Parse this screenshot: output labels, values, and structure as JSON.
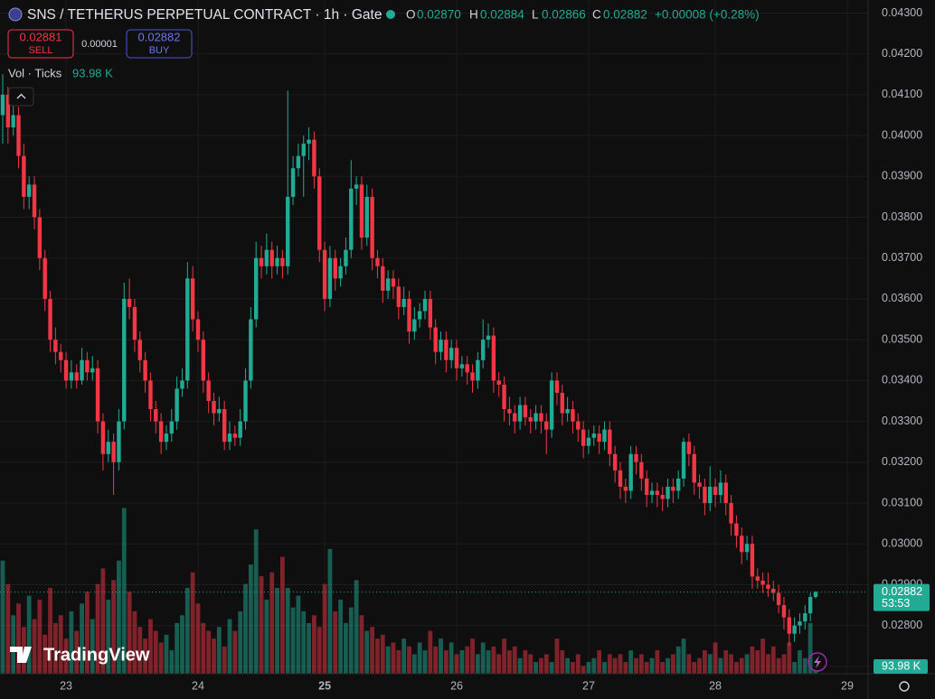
{
  "header": {
    "symbol": "SNS / TETHERUS PERPETUAL CONTRACT · 1h · Gate",
    "o_label": "O",
    "o": "0.02870",
    "h_label": "H",
    "h": "0.02884",
    "l_label": "L",
    "l": "0.02866",
    "c_label": "C",
    "c": "0.02882",
    "change": "+0.00008 (+0.28%)",
    "sell_price": "0.02881",
    "sell": "SELL",
    "spread": "0.00001",
    "buy_price": "0.02882",
    "buy": "BUY",
    "vol_title": "Vol · Ticks",
    "vol_value": "93.98 K",
    "logo": "TradingView",
    "price_badge": "0.02882",
    "countdown": "53:53",
    "vol_badge": "93.98 K"
  },
  "chart_data": {
    "type": "candlestick",
    "up_color": "#22ab94",
    "down_color": "#f23645",
    "grid": true,
    "categories": [
      null,
      null,
      null,
      null,
      null,
      null,
      null,
      null,
      null,
      null,
      null,
      null,
      "23",
      null,
      null,
      null,
      null,
      null,
      null,
      null,
      null,
      null,
      null,
      null,
      null,
      null,
      null,
      null,
      null,
      null,
      null,
      null,
      null,
      null,
      null,
      null,
      null,
      "24",
      null,
      null,
      null,
      null,
      null,
      null,
      null,
      null,
      null,
      null,
      null,
      null,
      null,
      null,
      null,
      null,
      null,
      null,
      null,
      null,
      null,
      null,
      null,
      "25",
      null,
      null,
      null,
      null,
      null,
      null,
      null,
      null,
      null,
      null,
      null,
      null,
      null,
      null,
      null,
      null,
      null,
      null,
      null,
      null,
      null,
      null,
      null,
      null,
      "26",
      null,
      null,
      null,
      null,
      null,
      null,
      null,
      null,
      null,
      null,
      null,
      null,
      null,
      null,
      null,
      null,
      null,
      null,
      null,
      null,
      null,
      null,
      null,
      null,
      "27",
      null,
      null,
      null,
      null,
      null,
      null,
      null,
      null,
      null,
      null,
      null,
      null,
      null,
      null,
      null,
      null,
      null,
      null,
      null,
      null,
      null,
      null,
      null,
      "28",
      null,
      null,
      null,
      null,
      null,
      null,
      null,
      null,
      null,
      null,
      null,
      null,
      null,
      null,
      null,
      null,
      null,
      null,
      null,
      null,
      null,
      null,
      null,
      null,
      "29"
    ],
    "ohlc": [
      [
        0.0405,
        0.0415,
        0.0398,
        0.041
      ],
      [
        0.041,
        0.0412,
        0.0398,
        0.0402
      ],
      [
        0.0402,
        0.0408,
        0.04,
        0.0405
      ],
      [
        0.0405,
        0.0407,
        0.0392,
        0.0395
      ],
      [
        0.0395,
        0.0398,
        0.0382,
        0.0385
      ],
      [
        0.0385,
        0.039,
        0.0382,
        0.0388
      ],
      [
        0.0388,
        0.039,
        0.0377,
        0.038
      ],
      [
        0.038,
        0.0382,
        0.0367,
        0.037
      ],
      [
        0.037,
        0.0372,
        0.0357,
        0.036
      ],
      [
        0.036,
        0.0362,
        0.0347,
        0.035
      ],
      [
        0.035,
        0.0353,
        0.0344,
        0.0347
      ],
      [
        0.0347,
        0.0349,
        0.0342,
        0.0345
      ],
      [
        0.0345,
        0.0347,
        0.0338,
        0.034
      ],
      [
        0.034,
        0.0345,
        0.0338,
        0.0342
      ],
      [
        0.0342,
        0.0344,
        0.0338,
        0.034
      ],
      [
        0.034,
        0.0348,
        0.0339,
        0.0345
      ],
      [
        0.0345,
        0.0347,
        0.034,
        0.0342
      ],
      [
        0.0342,
        0.0346,
        0.034,
        0.0343
      ],
      [
        0.0343,
        0.0345,
        0.0327,
        0.033
      ],
      [
        0.033,
        0.0332,
        0.0318,
        0.0322
      ],
      [
        0.0322,
        0.0328,
        0.032,
        0.0325
      ],
      [
        0.0325,
        0.0327,
        0.0312,
        0.032
      ],
      [
        0.032,
        0.0333,
        0.0318,
        0.033
      ],
      [
        0.033,
        0.0364,
        0.0328,
        0.036
      ],
      [
        0.036,
        0.0365,
        0.0355,
        0.0358
      ],
      [
        0.0358,
        0.036,
        0.0347,
        0.035
      ],
      [
        0.035,
        0.0352,
        0.0342,
        0.0345
      ],
      [
        0.0345,
        0.0347,
        0.0337,
        0.034
      ],
      [
        0.034,
        0.0342,
        0.033,
        0.0333
      ],
      [
        0.0333,
        0.0335,
        0.0327,
        0.033
      ],
      [
        0.033,
        0.0332,
        0.0322,
        0.0325
      ],
      [
        0.0325,
        0.0329,
        0.0323,
        0.0327
      ],
      [
        0.0327,
        0.0333,
        0.0325,
        0.033
      ],
      [
        0.033,
        0.0341,
        0.0328,
        0.0338
      ],
      [
        0.0338,
        0.0343,
        0.0336,
        0.034
      ],
      [
        0.034,
        0.0369,
        0.0338,
        0.0365
      ],
      [
        0.0365,
        0.0368,
        0.0352,
        0.0355
      ],
      [
        0.0355,
        0.0357,
        0.0347,
        0.035
      ],
      [
        0.035,
        0.0352,
        0.0337,
        0.034
      ],
      [
        0.034,
        0.0342,
        0.0332,
        0.0335
      ],
      [
        0.0335,
        0.0337,
        0.0329,
        0.0332
      ],
      [
        0.0332,
        0.0336,
        0.033,
        0.0333
      ],
      [
        0.0333,
        0.0335,
        0.0323,
        0.0325
      ],
      [
        0.0325,
        0.033,
        0.0323,
        0.0327
      ],
      [
        0.0327,
        0.0329,
        0.0324,
        0.0326
      ],
      [
        0.0326,
        0.0333,
        0.0324,
        0.033
      ],
      [
        0.033,
        0.0343,
        0.0328,
        0.034
      ],
      [
        0.034,
        0.0358,
        0.0338,
        0.0355
      ],
      [
        0.0355,
        0.0374,
        0.0353,
        0.037
      ],
      [
        0.037,
        0.0373,
        0.0365,
        0.0368
      ],
      [
        0.0368,
        0.0376,
        0.0366,
        0.0372
      ],
      [
        0.0372,
        0.0374,
        0.0365,
        0.0368
      ],
      [
        0.0368,
        0.0373,
        0.0366,
        0.037
      ],
      [
        0.037,
        0.0372,
        0.0365,
        0.0368
      ],
      [
        0.0368,
        0.0411,
        0.0366,
        0.0385
      ],
      [
        0.0385,
        0.0395,
        0.0383,
        0.0392
      ],
      [
        0.0392,
        0.0398,
        0.039,
        0.0395
      ],
      [
        0.0395,
        0.04,
        0.0385,
        0.0398
      ],
      [
        0.0398,
        0.0402,
        0.0394,
        0.0399
      ],
      [
        0.0399,
        0.0401,
        0.0387,
        0.039
      ],
      [
        0.039,
        0.0392,
        0.0369,
        0.0372
      ],
      [
        0.0372,
        0.0374,
        0.0357,
        0.036
      ],
      [
        0.036,
        0.0373,
        0.0358,
        0.037
      ],
      [
        0.037,
        0.0372,
        0.0362,
        0.0365
      ],
      [
        0.0365,
        0.037,
        0.0363,
        0.0368
      ],
      [
        0.0368,
        0.0375,
        0.0366,
        0.0372
      ],
      [
        0.0372,
        0.0394,
        0.037,
        0.0387
      ],
      [
        0.0387,
        0.039,
        0.0383,
        0.0388
      ],
      [
        0.0388,
        0.039,
        0.0372,
        0.0375
      ],
      [
        0.0375,
        0.0388,
        0.0373,
        0.0385
      ],
      [
        0.0385,
        0.0387,
        0.0367,
        0.037
      ],
      [
        0.037,
        0.0372,
        0.0365,
        0.0368
      ],
      [
        0.0368,
        0.037,
        0.0359,
        0.0362
      ],
      [
        0.0362,
        0.0367,
        0.036,
        0.0365
      ],
      [
        0.0365,
        0.0367,
        0.036,
        0.0363
      ],
      [
        0.0363,
        0.0365,
        0.0355,
        0.0358
      ],
      [
        0.0358,
        0.0363,
        0.0356,
        0.036
      ],
      [
        0.036,
        0.0362,
        0.0349,
        0.0352
      ],
      [
        0.0352,
        0.0358,
        0.035,
        0.0355
      ],
      [
        0.0355,
        0.0359,
        0.0353,
        0.0357
      ],
      [
        0.0357,
        0.0362,
        0.0355,
        0.036
      ],
      [
        0.036,
        0.0362,
        0.035,
        0.0353
      ],
      [
        0.0353,
        0.0355,
        0.0344,
        0.0347
      ],
      [
        0.0347,
        0.0352,
        0.0345,
        0.035
      ],
      [
        0.035,
        0.0352,
        0.0342,
        0.0345
      ],
      [
        0.0345,
        0.035,
        0.0343,
        0.0348
      ],
      [
        0.0348,
        0.035,
        0.034,
        0.0343
      ],
      [
        0.0343,
        0.0346,
        0.0341,
        0.0344
      ],
      [
        0.0344,
        0.0346,
        0.0339,
        0.0342
      ],
      [
        0.0342,
        0.0344,
        0.0337,
        0.034
      ],
      [
        0.034,
        0.0347,
        0.0338,
        0.0345
      ],
      [
        0.0345,
        0.0355,
        0.0343,
        0.035
      ],
      [
        0.035,
        0.0354,
        0.0348,
        0.0351
      ],
      [
        0.0351,
        0.0353,
        0.0337,
        0.034
      ],
      [
        0.034,
        0.0342,
        0.0336,
        0.0339
      ],
      [
        0.0339,
        0.0341,
        0.033,
        0.0333
      ],
      [
        0.0333,
        0.0336,
        0.0329,
        0.0332
      ],
      [
        0.0332,
        0.0334,
        0.0327,
        0.033
      ],
      [
        0.033,
        0.0336,
        0.0328,
        0.0334
      ],
      [
        0.0334,
        0.0336,
        0.0329,
        0.0331
      ],
      [
        0.0331,
        0.0333,
        0.0327,
        0.033
      ],
      [
        0.033,
        0.0334,
        0.0328,
        0.0332
      ],
      [
        0.0332,
        0.0334,
        0.0327,
        0.033
      ],
      [
        0.033,
        0.0332,
        0.0322,
        0.0328
      ],
      [
        0.0328,
        0.0342,
        0.0326,
        0.034
      ],
      [
        0.034,
        0.0342,
        0.0334,
        0.0337
      ],
      [
        0.0337,
        0.0339,
        0.0329,
        0.0332
      ],
      [
        0.0332,
        0.0336,
        0.033,
        0.0333
      ],
      [
        0.0333,
        0.0335,
        0.0327,
        0.033
      ],
      [
        0.033,
        0.0332,
        0.0325,
        0.0328
      ],
      [
        0.0328,
        0.033,
        0.0321,
        0.0324
      ],
      [
        0.0324,
        0.0328,
        0.0322,
        0.0326
      ],
      [
        0.0326,
        0.0329,
        0.0324,
        0.0327
      ],
      [
        0.0327,
        0.0329,
        0.0322,
        0.0325
      ],
      [
        0.0325,
        0.033,
        0.0323,
        0.0328
      ],
      [
        0.0328,
        0.033,
        0.0319,
        0.0322
      ],
      [
        0.0322,
        0.0324,
        0.0315,
        0.0318
      ],
      [
        0.0318,
        0.032,
        0.0311,
        0.0314
      ],
      [
        0.0314,
        0.0316,
        0.031,
        0.0313
      ],
      [
        0.0313,
        0.0324,
        0.0311,
        0.0322
      ],
      [
        0.0322,
        0.0324,
        0.0317,
        0.032
      ],
      [
        0.032,
        0.0322,
        0.0313,
        0.0316
      ],
      [
        0.0316,
        0.0318,
        0.0309,
        0.0312
      ],
      [
        0.0312,
        0.0315,
        0.031,
        0.0313
      ],
      [
        0.0313,
        0.0315,
        0.0309,
        0.0312
      ],
      [
        0.0312,
        0.0314,
        0.0308,
        0.0311
      ],
      [
        0.0311,
        0.0316,
        0.0309,
        0.0314
      ],
      [
        0.0314,
        0.0316,
        0.031,
        0.0313
      ],
      [
        0.0313,
        0.0318,
        0.0311,
        0.0316
      ],
      [
        0.0316,
        0.0326,
        0.0314,
        0.0325
      ],
      [
        0.0325,
        0.0327,
        0.0319,
        0.0322
      ],
      [
        0.0322,
        0.0324,
        0.0312,
        0.0315
      ],
      [
        0.0315,
        0.0317,
        0.0311,
        0.0314
      ],
      [
        0.0314,
        0.0316,
        0.0307,
        0.031
      ],
      [
        0.031,
        0.0319,
        0.0308,
        0.0314
      ],
      [
        0.0314,
        0.0316,
        0.0309,
        0.0312
      ],
      [
        0.0312,
        0.0318,
        0.031,
        0.0315
      ],
      [
        0.0315,
        0.0317,
        0.0307,
        0.031
      ],
      [
        0.031,
        0.0312,
        0.0302,
        0.0305
      ],
      [
        0.0305,
        0.0307,
        0.0299,
        0.0302
      ],
      [
        0.0302,
        0.0304,
        0.0295,
        0.0298
      ],
      [
        0.0298,
        0.0302,
        0.0296,
        0.03
      ],
      [
        0.03,
        0.0302,
        0.0289,
        0.0292
      ],
      [
        0.0292,
        0.0294,
        0.0289,
        0.0291
      ],
      [
        0.0291,
        0.0293,
        0.0288,
        0.029
      ],
      [
        0.029,
        0.0293,
        0.0287,
        0.0289
      ],
      [
        0.0289,
        0.0291,
        0.0286,
        0.0288
      ],
      [
        0.0288,
        0.029,
        0.0283,
        0.0285
      ],
      [
        0.0285,
        0.0287,
        0.0279,
        0.0282
      ],
      [
        0.0282,
        0.0284,
        0.0275,
        0.0278
      ],
      [
        0.0278,
        0.0282,
        0.0276,
        0.028
      ],
      [
        0.028,
        0.0283,
        0.0278,
        0.0281
      ],
      [
        0.0281,
        0.0285,
        0.0279,
        0.0283
      ],
      [
        0.0283,
        0.0288,
        0.0281,
        0.0287
      ],
      [
        0.0287,
        0.02884,
        0.02866,
        0.02882
      ],
      null,
      null,
      null,
      null,
      null,
      null
    ],
    "volume": [
      2900,
      2300,
      1500,
      1800,
      1200,
      2000,
      1400,
      1900,
      1000,
      2200,
      1300,
      1500,
      900,
      1600,
      1100,
      1800,
      2100,
      1400,
      2300,
      2700,
      1900,
      2400,
      2900,
      4250,
      2100,
      1600,
      1200,
      900,
      1400,
      1100,
      800,
      1000,
      600,
      1300,
      1500,
      2200,
      2600,
      1800,
      1300,
      1100,
      900,
      1200,
      700,
      1400,
      1100,
      1600,
      2300,
      2800,
      3700,
      2500,
      1900,
      2600,
      2200,
      3000,
      2200,
      1700,
      2000,
      1600,
      1300,
      1500,
      1200,
      2300,
      3200,
      1600,
      1900,
      1300,
      1700,
      2400,
      1500,
      1100,
      1200,
      900,
      1000,
      700,
      800,
      600,
      900,
      700,
      500,
      800,
      600,
      1100,
      700,
      900,
      600,
      800,
      500,
      600,
      700,
      900,
      500,
      800,
      600,
      700,
      500,
      900,
      600,
      700,
      400,
      600,
      500,
      300,
      400,
      500,
      300,
      900,
      600,
      400,
      300,
      500,
      200,
      300,
      400,
      600,
      300,
      500,
      400,
      500,
      300,
      600,
      400,
      500,
      300,
      400,
      600,
      300,
      400,
      500,
      700,
      900,
      500,
      300,
      400,
      600,
      500,
      800,
      400,
      600,
      500,
      300,
      400,
      500,
      700,
      600,
      900,
      500,
      700,
      400,
      500,
      800,
      300,
      600,
      400,
      1300,
      93.98,
      null,
      null,
      null,
      null,
      null,
      null
    ],
    "volume_lim": [
      0,
      4400
    ],
    "ylim": [
      0.02682,
      0.04332
    ],
    "yticks": [
      {
        "value": 0.027,
        "label": "0.02700"
      },
      {
        "value": 0.028,
        "label": "0.02800"
      },
      {
        "value": 0.029,
        "label": "0.02900"
      },
      {
        "value": 0.03,
        "label": "0.03000"
      },
      {
        "value": 0.031,
        "label": "0.03100"
      },
      {
        "value": 0.032,
        "label": "0.03200"
      },
      {
        "value": 0.033,
        "label": "0.03300"
      },
      {
        "value": 0.034,
        "label": "0.03400"
      },
      {
        "value": 0.035,
        "label": "0.03500"
      },
      {
        "value": 0.036,
        "label": "0.03600"
      },
      {
        "value": 0.037,
        "label": "0.03700"
      },
      {
        "value": 0.038,
        "label": "0.03800"
      },
      {
        "value": 0.039,
        "label": "0.03900"
      },
      {
        "value": 0.04,
        "label": "0.04000"
      },
      {
        "value": 0.041,
        "label": "0.04100"
      },
      {
        "value": 0.042,
        "label": "0.04200"
      },
      {
        "value": 0.043,
        "label": "0.04300"
      }
    ],
    "current_price": 0.02882
  }
}
